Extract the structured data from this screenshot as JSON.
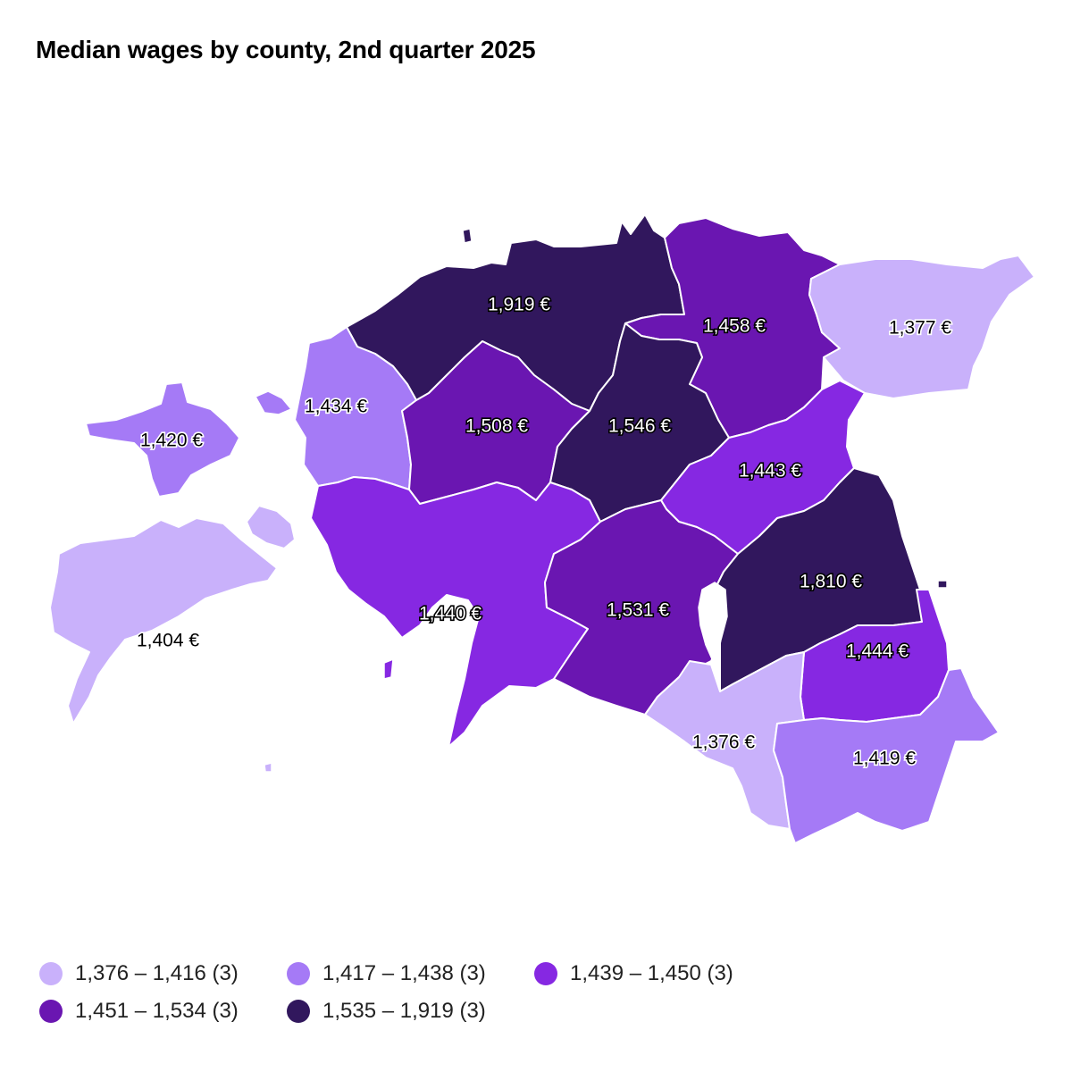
{
  "title": "Median wages by county, 2nd quarter 2025",
  "colors": {
    "c1": "#c9b1fb",
    "c2": "#a57af6",
    "c3": "#8628e2",
    "c4": "#6a16b1",
    "c5": "#31175d"
  },
  "legend": [
    {
      "label": "1,376 – 1,416 (3)",
      "color": "#c9b1fb"
    },
    {
      "label": "1,417 – 1,438 (3)",
      "color": "#a57af6"
    },
    {
      "label": "1,439 – 1,450 (3)",
      "color": "#8628e2"
    },
    {
      "label": "1,451 – 1,534 (3)",
      "color": "#6a16b1"
    },
    {
      "label": "1,535 – 1,919 (3)",
      "color": "#31175d"
    }
  ],
  "counties": [
    {
      "id": "harju",
      "value": "1,919 €"
    },
    {
      "id": "laane-viru",
      "value": "1,458 €"
    },
    {
      "id": "ida-viru",
      "value": "1,377 €"
    },
    {
      "id": "laane",
      "value": "1,434 €"
    },
    {
      "id": "hiiu",
      "value": "1,420 €"
    },
    {
      "id": "rapla",
      "value": "1,508 €"
    },
    {
      "id": "jarva",
      "value": "1,546 €"
    },
    {
      "id": "jogeva",
      "value": "1,443 €"
    },
    {
      "id": "saare",
      "value": "1,404 €"
    },
    {
      "id": "parnu",
      "value": "1,440 €"
    },
    {
      "id": "viljandi",
      "value": "1,531 €"
    },
    {
      "id": "tartu",
      "value": "1,810 €"
    },
    {
      "id": "polva",
      "value": "1,444 €"
    },
    {
      "id": "valga",
      "value": "1,376 €"
    },
    {
      "id": "voru",
      "value": "1,419 €"
    }
  ]
}
